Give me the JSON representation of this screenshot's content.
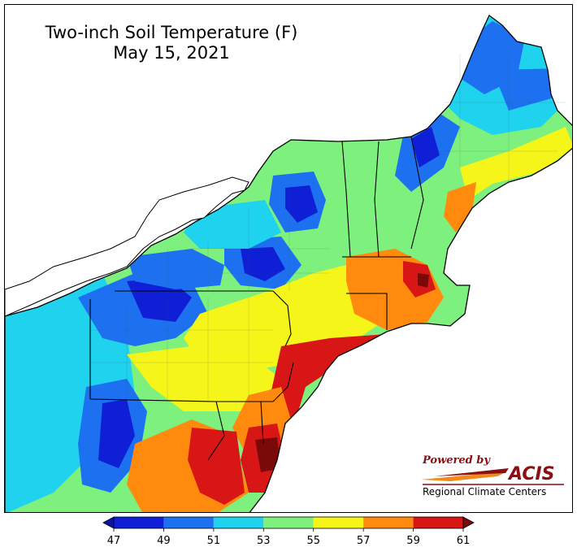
{
  "title": {
    "line1": "Two-inch Soil Temperature (F)",
    "line2": "May 15, 2021"
  },
  "logo": {
    "powered_by": "Powered by",
    "acis": "ACIS",
    "centers": "Regional Climate Centers"
  },
  "legend": {
    "tick_labels": [
      "47",
      "49",
      "51",
      "53",
      "55",
      "57",
      "59",
      "61"
    ],
    "bins": [
      {
        "from": 47,
        "to": 49,
        "color": "#0e1fd6"
      },
      {
        "from": 49,
        "to": 51,
        "color": "#1d70f0"
      },
      {
        "from": 51,
        "to": 53,
        "color": "#1fd2ee"
      },
      {
        "from": 53,
        "to": 55,
        "color": "#7ef07e"
      },
      {
        "from": 55,
        "to": 57,
        "color": "#f5f51a"
      },
      {
        "from": 57,
        "to": 59,
        "color": "#ff8a0e"
      },
      {
        "from": 59,
        "to": 61,
        "color": "#d81616"
      }
    ],
    "under_color": "#0a13a6",
    "over_color": "#7a0a0a"
  },
  "colors": {
    "logo_red": "#8b0f12",
    "logo_orange": "#f08a1a"
  }
}
